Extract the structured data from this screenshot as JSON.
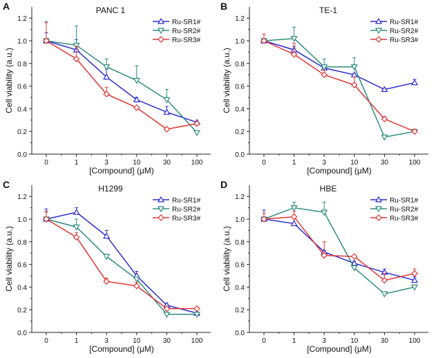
{
  "colors": {
    "Ru-SR1#": "#2b2bd1",
    "Ru-SR2#": "#2e8b80",
    "Ru-SR3#": "#e23434"
  },
  "chart_data": [
    {
      "type": "line",
      "panel": "A",
      "title": "PANC 1",
      "xlabel": "[Compound] (μM)",
      "ylabel": "Cell viability (a.u.)",
      "categories": [
        "0",
        "1",
        "3",
        "10",
        "30",
        "100"
      ],
      "ylim": [
        0,
        1.3
      ],
      "yticks": [
        "0.0",
        "0.2",
        "0.4",
        "0.6",
        "0.8",
        "1.0",
        "1.2"
      ],
      "legend": "top-right",
      "series": [
        {
          "name": "Ru-SR1#",
          "values": [
            1.0,
            0.92,
            0.68,
            0.48,
            0.37,
            0.28
          ],
          "err": [
            0.07,
            0.09,
            0.07,
            0.02,
            0.05,
            0.01
          ]
        },
        {
          "name": "Ru-SR2#",
          "values": [
            1.0,
            0.96,
            0.77,
            0.65,
            0.48,
            0.19
          ],
          "err": [
            0.17,
            0.17,
            0.07,
            0.13,
            0.09,
            0.01
          ]
        },
        {
          "name": "Ru-SR3#",
          "values": [
            1.0,
            0.84,
            0.53,
            0.41,
            0.22,
            0.27
          ],
          "err": [
            0.16,
            0.11,
            0.06,
            0.01,
            0.01,
            0.01
          ]
        }
      ]
    },
    {
      "type": "line",
      "panel": "B",
      "title": "TE-1",
      "xlabel": "[Compound] (μM)",
      "ylabel": "Cell viability (a.u.)",
      "categories": [
        "0",
        "1",
        "3",
        "10",
        "30",
        "100"
      ],
      "ylim": [
        0,
        1.3
      ],
      "yticks": [
        "0.0",
        "0.2",
        "0.4",
        "0.6",
        "0.8",
        "1.0",
        "1.2"
      ],
      "legend": "top-right",
      "series": [
        {
          "name": "Ru-SR1#",
          "values": [
            1.0,
            0.92,
            0.76,
            0.7,
            0.57,
            0.63
          ],
          "err": [
            0.02,
            0.03,
            0.01,
            0.01,
            0.01,
            0.03
          ]
        },
        {
          "name": "Ru-SR2#",
          "values": [
            1.0,
            1.02,
            0.77,
            0.77,
            0.15,
            0.2
          ],
          "err": [
            0.01,
            0.1,
            0.07,
            0.08,
            0.01,
            0.01
          ]
        },
        {
          "name": "Ru-SR3#",
          "values": [
            1.0,
            0.88,
            0.7,
            0.61,
            0.31,
            0.2
          ],
          "err": [
            0.06,
            0.1,
            0.04,
            0.07,
            0.02,
            0.01
          ]
        }
      ]
    },
    {
      "type": "line",
      "panel": "C",
      "title": "H1299",
      "xlabel": "[Compound] (μM)",
      "ylabel": "Cell viability (a.u.)",
      "categories": [
        "0",
        "1",
        "3",
        "10",
        "30",
        "100"
      ],
      "ylim": [
        0,
        1.3
      ],
      "yticks": [
        "0.0",
        "0.2",
        "0.4",
        "0.6",
        "0.8",
        "1.0",
        "1.2"
      ],
      "legend": "top-right",
      "series": [
        {
          "name": "Ru-SR1#",
          "values": [
            1.0,
            1.06,
            0.85,
            0.5,
            0.24,
            0.17
          ],
          "err": [
            0.09,
            0.04,
            0.05,
            0.04,
            0.01,
            0.01
          ]
        },
        {
          "name": "Ru-SR2#",
          "values": [
            1.0,
            0.93,
            0.67,
            0.47,
            0.16,
            0.16
          ],
          "err": [
            0.06,
            0.07,
            0.02,
            0.01,
            0.01,
            0.01
          ]
        },
        {
          "name": "Ru-SR3#",
          "values": [
            1.0,
            0.84,
            0.45,
            0.41,
            0.21,
            0.21
          ],
          "err": [
            0.07,
            0.04,
            0.03,
            0.03,
            0.01,
            0.01
          ]
        }
      ]
    },
    {
      "type": "line",
      "panel": "D",
      "title": "HBE",
      "xlabel": "[Compound] (μM)",
      "ylabel": "Cell viability (a.u.)",
      "categories": [
        "0",
        "1",
        "3",
        "10",
        "30",
        "100"
      ],
      "ylim": [
        0,
        1.3
      ],
      "yticks": [
        "0.0",
        "0.2",
        "0.4",
        "0.6",
        "0.8",
        "1.0",
        "1.2"
      ],
      "legend": "top-right",
      "series": [
        {
          "name": "Ru-SR1#",
          "values": [
            1.0,
            0.96,
            0.71,
            0.61,
            0.53,
            0.46
          ],
          "err": [
            0.08,
            0.07,
            0.01,
            0.02,
            0.03,
            0.03
          ]
        },
        {
          "name": "Ru-SR2#",
          "values": [
            1.0,
            1.1,
            1.06,
            0.57,
            0.34,
            0.4
          ],
          "err": [
            0.01,
            0.05,
            0.09,
            0.01,
            0.01,
            0.01
          ]
        },
        {
          "name": "Ru-SR3#",
          "values": [
            1.0,
            1.02,
            0.68,
            0.67,
            0.46,
            0.52
          ],
          "err": [
            0.05,
            0.05,
            0.12,
            0.01,
            0.06,
            0.04
          ]
        }
      ]
    }
  ]
}
